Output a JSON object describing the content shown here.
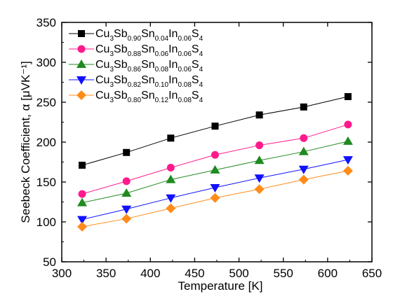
{
  "chart_data": {
    "type": "line",
    "xlabel": "Temperature [K]",
    "ylabel": "Seebeck Coefficient, α [μVK⁻¹]",
    "xlim": [
      300,
      650
    ],
    "ylim": [
      50,
      350
    ],
    "xticks": [
      300,
      350,
      400,
      450,
      500,
      550,
      600,
      650
    ],
    "yticks": [
      50,
      100,
      150,
      200,
      250,
      300,
      350
    ],
    "grid": false,
    "legend_position": "top-left",
    "x": [
      323,
      373,
      423,
      473,
      523,
      573,
      623
    ],
    "series": [
      {
        "name": "Cu3Sb0.90Sn0.04In0.06S4",
        "name_parts": [
          [
            "Cu",
            ""
          ],
          [
            "3",
            "sub"
          ],
          [
            "Sb",
            ""
          ],
          [
            "0.90",
            "sub"
          ],
          [
            "Sn",
            ""
          ],
          [
            "0.04",
            "sub"
          ],
          [
            "In",
            ""
          ],
          [
            "0.06",
            "sub"
          ],
          [
            "S",
            ""
          ],
          [
            "4",
            "sub"
          ]
        ],
        "marker": "square",
        "color": "#000000",
        "values": [
          171,
          187,
          205,
          220,
          234,
          244,
          257
        ]
      },
      {
        "name": "Cu3Sb0.88Sn0.06In0.06S4",
        "name_parts": [
          [
            "Cu",
            ""
          ],
          [
            "3",
            "sub"
          ],
          [
            "Sb",
            ""
          ],
          [
            "0.88",
            "sub"
          ],
          [
            "Sn",
            ""
          ],
          [
            "0.06",
            "sub"
          ],
          [
            "In",
            ""
          ],
          [
            "0.06",
            "sub"
          ],
          [
            "S",
            ""
          ],
          [
            "4",
            "sub"
          ]
        ],
        "marker": "circle",
        "color": "#ff1a8c",
        "values": [
          135,
          151,
          168,
          184,
          196,
          205,
          222
        ]
      },
      {
        "name": "Cu3Sb0.86Sn0.08In0.06S4",
        "name_parts": [
          [
            "Cu",
            ""
          ],
          [
            "3",
            "sub"
          ],
          [
            "Sb",
            ""
          ],
          [
            "0.86",
            "sub"
          ],
          [
            "Sn",
            ""
          ],
          [
            "0.08",
            "sub"
          ],
          [
            "In",
            ""
          ],
          [
            "0.06",
            "sub"
          ],
          [
            "S",
            ""
          ],
          [
            "4",
            "sub"
          ]
        ],
        "marker": "triangle-up",
        "color": "#1f8a1f",
        "values": [
          124,
          136,
          153,
          165,
          177,
          188,
          201
        ]
      },
      {
        "name": "Cu3Sb0.82Sn0.10In0.08S4",
        "name_parts": [
          [
            "Cu",
            ""
          ],
          [
            "3",
            "sub"
          ],
          [
            "Sb",
            ""
          ],
          [
            "0.82",
            "sub"
          ],
          [
            "Sn",
            ""
          ],
          [
            "0.10",
            "sub"
          ],
          [
            "In",
            ""
          ],
          [
            "0.08",
            "sub"
          ],
          [
            "S",
            ""
          ],
          [
            "4",
            "sub"
          ]
        ],
        "marker": "triangle-down",
        "color": "#1010ff",
        "values": [
          103,
          116,
          130,
          143,
          155,
          166,
          178
        ]
      },
      {
        "name": "Cu3Sb0.80Sn0.12In0.08S4",
        "name_parts": [
          [
            "Cu",
            ""
          ],
          [
            "3",
            "sub"
          ],
          [
            "Sb",
            ""
          ],
          [
            "0.80",
            "sub"
          ],
          [
            "Sn",
            ""
          ],
          [
            "0.12",
            "sub"
          ],
          [
            "In",
            ""
          ],
          [
            "0.08",
            "sub"
          ],
          [
            "S",
            ""
          ],
          [
            "4",
            "sub"
          ]
        ],
        "marker": "diamond",
        "color": "#ff8c1a",
        "values": [
          94,
          104,
          117,
          130,
          141,
          153,
          164
        ]
      }
    ]
  }
}
